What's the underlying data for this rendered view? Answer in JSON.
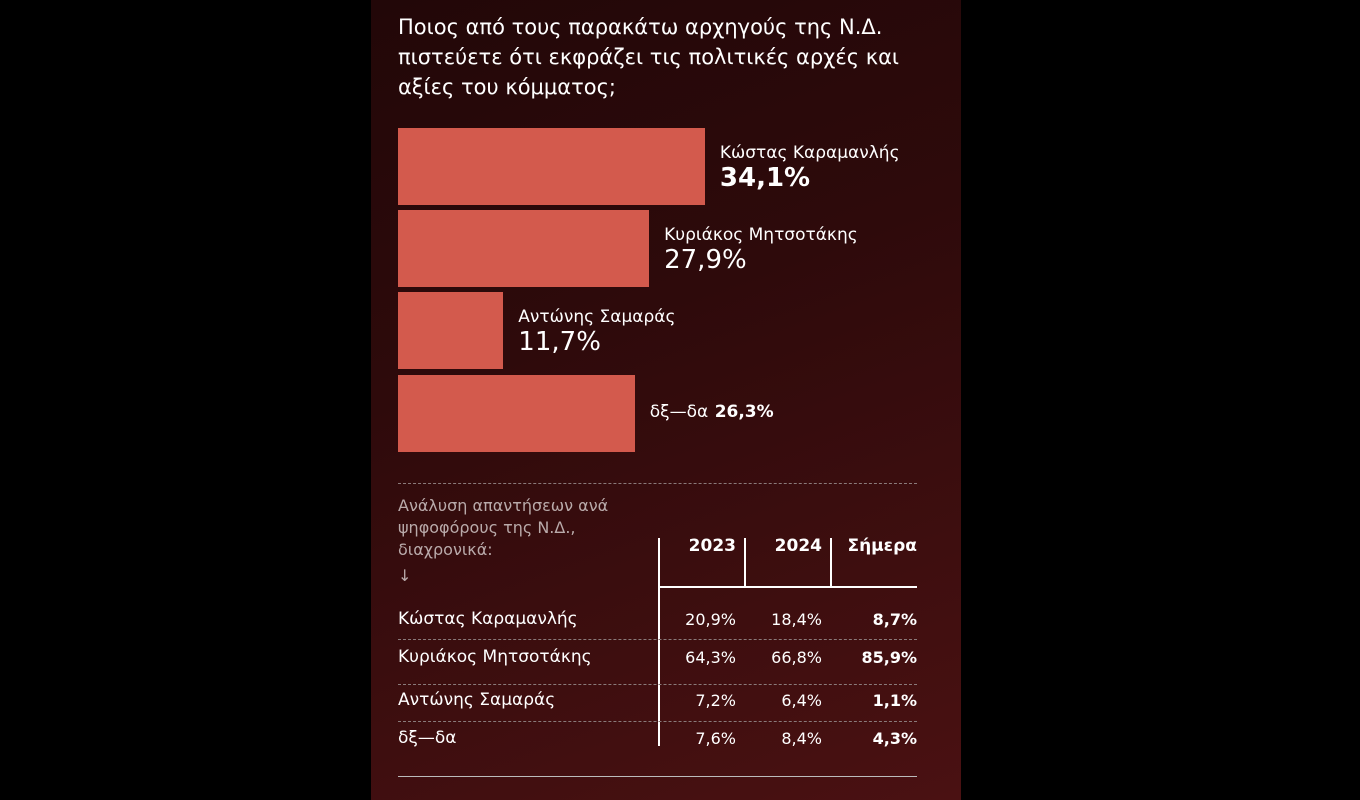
{
  "chart_data": {
    "type": "bar",
    "orientation": "horizontal",
    "title": "Ποιος από τους παρακάτω αρχηγούς της Ν.Δ. πιστεύετε ότι εκφράζει τις πολιτικές αρχές και αξίες του κόμματος;",
    "categories": [
      "Κώστας Καραμανλής",
      "Κυριάκος Μητσοτάκης",
      "Αντώνης Σαμαράς",
      "δξ—δα"
    ],
    "values": [
      34.1,
      27.9,
      11.7,
      26.3
    ],
    "value_labels": [
      "34,1%",
      "27,9%",
      "11,7%",
      "26,3%"
    ],
    "color": "#d35a4d"
  },
  "table": {
    "caption": "Ανάλυση απαντήσεων ανά ψηφοφόρους της Ν.Δ., διαχρονικά:",
    "columns": [
      "2023",
      "2024",
      "Σήμερα"
    ],
    "rows": [
      [
        "Κώστας Καραμανλής",
        "20,9%",
        "18,4%",
        "8,7%"
      ],
      [
        "Κυριάκος Μητσοτάκης",
        "64,3%",
        "66,8%",
        "85,9%"
      ],
      [
        "Αντώνης Σαμαράς",
        "7,2%",
        "6,4%",
        "1,1%"
      ],
      [
        "δξ—δα",
        "7,6%",
        "8,4%",
        "4,3%"
      ]
    ]
  }
}
